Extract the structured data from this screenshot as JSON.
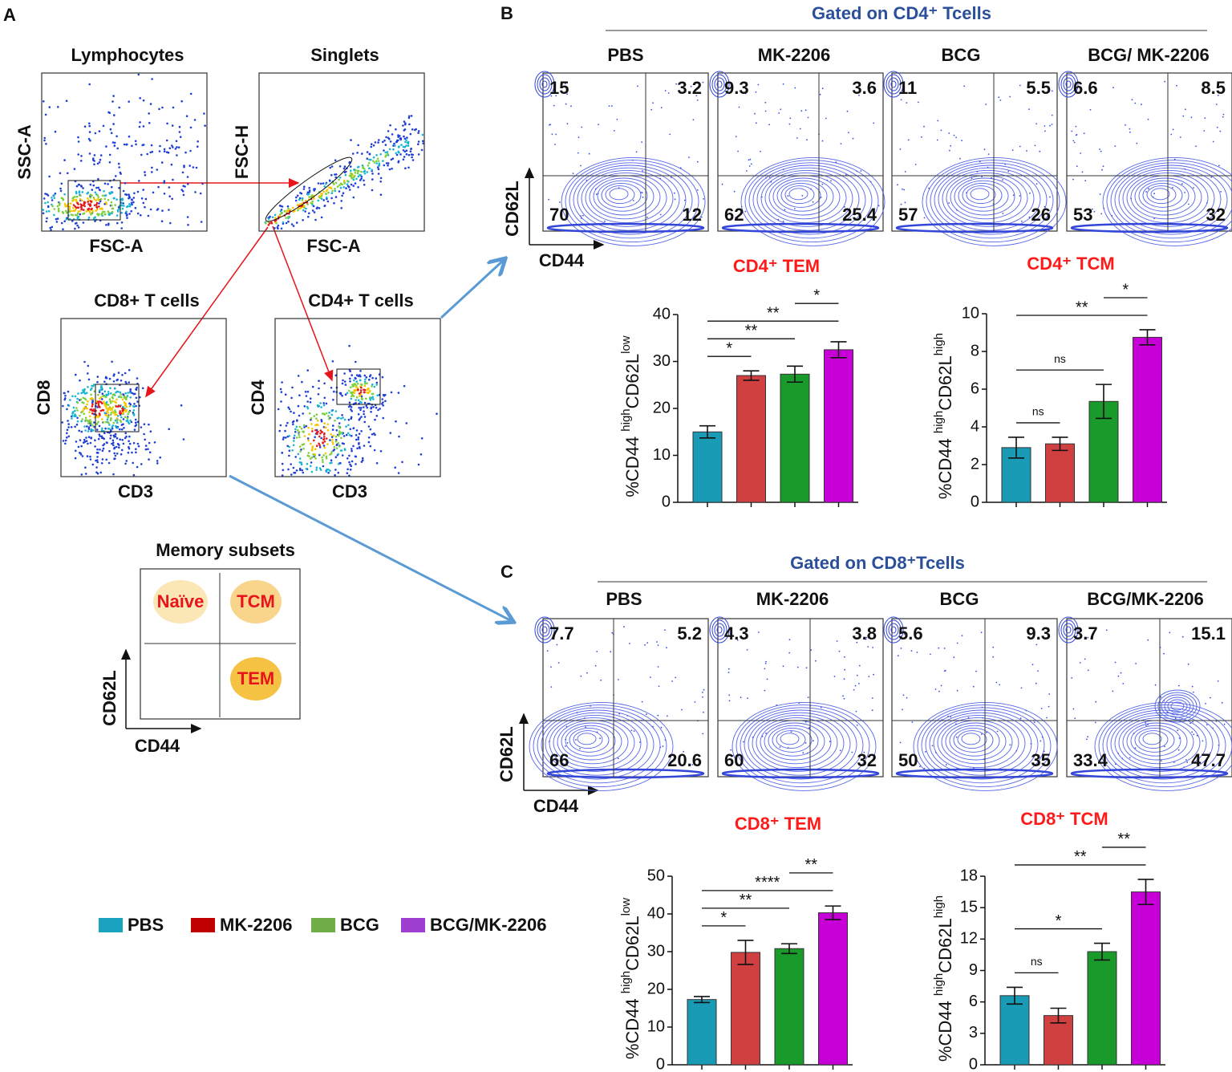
{
  "panel_labels": [
    "A",
    "B",
    "C"
  ],
  "gating": {
    "plots": [
      {
        "title": "Lymphocytes",
        "y_label": "SSC-A",
        "x_label": "FSC-A"
      },
      {
        "title": "Singlets",
        "y_label": "FSC-H",
        "x_label": "FSC-A"
      },
      {
        "title": "CD8+ T cells",
        "y_label": "CD8",
        "x_label": "CD3"
      },
      {
        "title": "CD4+ T cells",
        "y_label": "CD4",
        "x_label": "CD3"
      }
    ]
  },
  "memory_subsets": {
    "title": "Memory subsets",
    "quadrants": [
      "Naïve",
      "TCM",
      "TEM"
    ],
    "y_label": "CD62L",
    "x_label": "CD44"
  },
  "legend": [
    {
      "name": "PBS",
      "color": "#1aa3bf"
    },
    {
      "name": "MK-2206",
      "color": "#c00000"
    },
    {
      "name": "BCG",
      "color": "#70ad47"
    },
    {
      "name": "BCG/MK-2206",
      "color": "#9e3fd1"
    }
  ],
  "flow_panels": [
    {
      "title": "Gated on CD4⁺ Tcells",
      "y_label": "CD62L",
      "x_label": "CD44",
      "plots": [
        {
          "title": "PBS",
          "quadrants": [
            15,
            3.2,
            70,
            12
          ]
        },
        {
          "title": "MK-2206",
          "quadrants": [
            9.3,
            3.6,
            62,
            25.4
          ]
        },
        {
          "title": "BCG",
          "quadrants": [
            11,
            5.5,
            57,
            26
          ]
        },
        {
          "title": "BCG/ MK-2206",
          "quadrants": [
            6.6,
            8.5,
            53,
            32
          ]
        }
      ]
    },
    {
      "title": "Gated on CD8⁺Tcells",
      "y_label": "CD62L",
      "x_label": "CD44",
      "plots": [
        {
          "title": "PBS",
          "quadrants": [
            7.7,
            5.2,
            66,
            20.6
          ]
        },
        {
          "title": "MK-2206",
          "quadrants": [
            4.3,
            3.8,
            60,
            32
          ]
        },
        {
          "title": "BCG",
          "quadrants": [
            5.6,
            9.3,
            50,
            35
          ]
        },
        {
          "title": "BCG/MK-2206",
          "quadrants": [
            3.7,
            15.1,
            33.4,
            47.7
          ]
        }
      ]
    }
  ],
  "chart_data": [
    {
      "type": "bar",
      "title": "CD4⁺ TEM",
      "y_label": [
        "%CD44 ",
        "high",
        "CD62L",
        "low"
      ],
      "values": [
        15,
        27,
        27.3,
        32.5
      ],
      "errors": [
        1.3,
        1,
        1.7,
        1.7
      ],
      "colors": [
        "#1a9bb5",
        "#d04040",
        "#1a9a2a",
        "#c800d8"
      ],
      "ylim": [
        0,
        40
      ],
      "yticks": [
        0,
        10,
        20,
        30,
        40
      ],
      "significance": [
        {
          "pair": [
            0,
            1
          ],
          "label": "*"
        },
        {
          "pair": [
            0,
            2
          ],
          "label": "**"
        },
        {
          "pair": [
            0,
            3
          ],
          "label": "**"
        },
        {
          "pair": [
            2,
            3
          ],
          "label": "*"
        }
      ]
    },
    {
      "type": "bar",
      "title": "CD4⁺ TCM",
      "y_label": [
        "%CD44 ",
        "high",
        "CD62L",
        "high"
      ],
      "values": [
        2.9,
        3.1,
        5.35,
        8.75
      ],
      "errors": [
        0.55,
        0.35,
        0.9,
        0.4
      ],
      "colors": [
        "#1a9bb5",
        "#d04040",
        "#1a9a2a",
        "#c800d8"
      ],
      "ylim": [
        0,
        10
      ],
      "yticks": [
        0,
        2,
        4,
        6,
        8,
        10
      ],
      "significance": [
        {
          "pair": [
            0,
            1
          ],
          "label": "ns"
        },
        {
          "pair": [
            0,
            2
          ],
          "label": "ns"
        },
        {
          "pair": [
            0,
            3
          ],
          "label": "**"
        },
        {
          "pair": [
            2,
            3
          ],
          "label": "*"
        }
      ]
    },
    {
      "type": "bar",
      "title": "CD8⁺ TEM",
      "y_label": [
        "%CD44 ",
        "high",
        "CD62L",
        "low"
      ],
      "values": [
        17.3,
        29.8,
        30.8,
        40.3
      ],
      "errors": [
        0.8,
        3.2,
        1.3,
        1.8
      ],
      "colors": [
        "#1a9bb5",
        "#d04040",
        "#1a9a2a",
        "#c800d8"
      ],
      "ylim": [
        0,
        50
      ],
      "yticks": [
        0,
        10,
        20,
        30,
        40,
        50
      ],
      "significance": [
        {
          "pair": [
            0,
            1
          ],
          "label": "*"
        },
        {
          "pair": [
            0,
            2
          ],
          "label": "**"
        },
        {
          "pair": [
            0,
            3
          ],
          "label": "****"
        },
        {
          "pair": [
            2,
            3
          ],
          "label": "**"
        }
      ]
    },
    {
      "type": "bar",
      "title": "CD8⁺ TCM",
      "y_label": [
        "%CD44 ",
        "high",
        "CD62L",
        "high"
      ],
      "values": [
        6.6,
        4.7,
        10.8,
        16.5
      ],
      "errors": [
        0.8,
        0.7,
        0.8,
        1.2
      ],
      "colors": [
        "#1a9bb5",
        "#d04040",
        "#1a9a2a",
        "#c800d8"
      ],
      "ylim": [
        0,
        18
      ],
      "yticks": [
        0,
        3,
        6,
        9,
        12,
        15,
        18
      ],
      "significance": [
        {
          "pair": [
            0,
            1
          ],
          "label": "ns"
        },
        {
          "pair": [
            0,
            2
          ],
          "label": "*"
        },
        {
          "pair": [
            0,
            3
          ],
          "label": "**"
        },
        {
          "pair": [
            2,
            3
          ],
          "label": "**"
        }
      ]
    }
  ]
}
